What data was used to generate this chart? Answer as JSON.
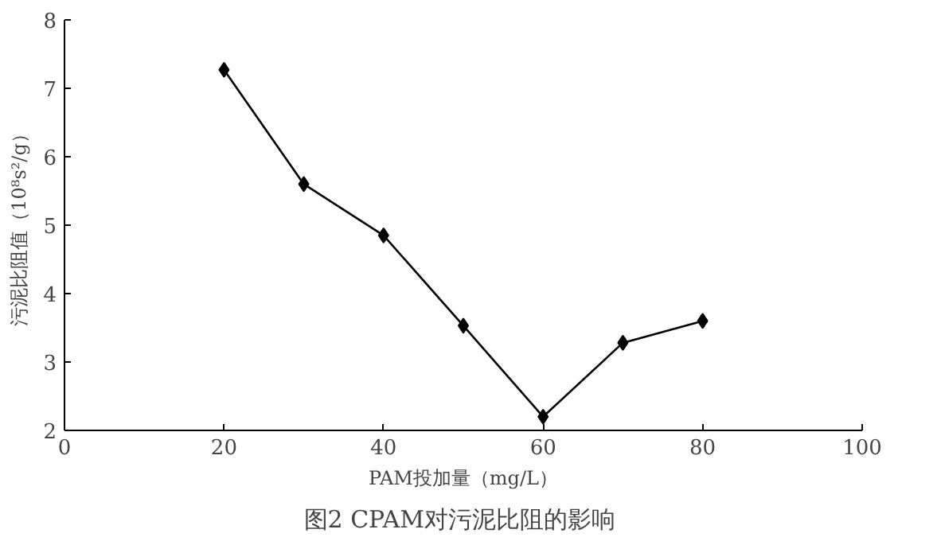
{
  "chart_data": {
    "type": "line",
    "title": "图2  CPAM对污泥比阻的影响",
    "xlabel": "PAM投加量（mg/L）",
    "ylabel": "污泥比阻值（10⁸s²/g）",
    "x": [
      20,
      30,
      40,
      50,
      60,
      70,
      80
    ],
    "series": [
      {
        "color": "#000000",
        "values": [
          7.27,
          5.6,
          4.85,
          3.53,
          2.2,
          3.28,
          3.6
        ]
      }
    ],
    "xlim": [
      0,
      100
    ],
    "xticks": [
      0,
      20,
      40,
      60,
      80,
      100
    ],
    "ylim": [
      2,
      8
    ],
    "yticks": [
      2,
      3,
      4,
      5,
      6,
      7,
      8
    ],
    "marker": "diamond",
    "line_style": "solid",
    "grid": false
  }
}
